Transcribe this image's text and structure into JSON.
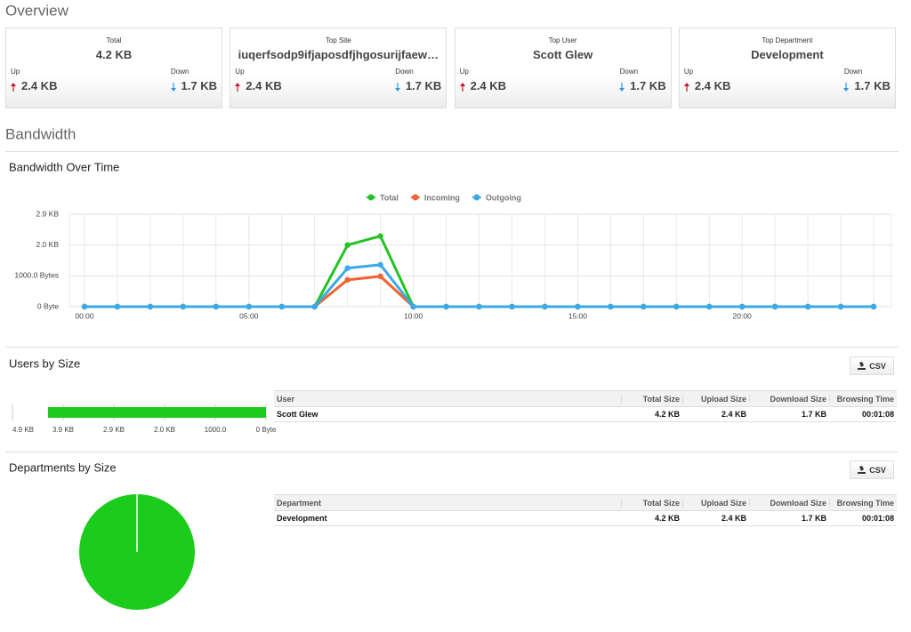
{
  "overview": {
    "title": "Overview",
    "cards": [
      {
        "label": "Total",
        "value": "4.2 KB",
        "up_label": "Up",
        "up_value": "2.4 KB",
        "down_label": "Down",
        "down_value": "1.7 KB"
      },
      {
        "label": "Top Site",
        "value": "iuqerfsodp9ifjaposdfjhgosurijfaew…",
        "up_label": "Up",
        "up_value": "2.4 KB",
        "down_label": "Down",
        "down_value": "1.7 KB"
      },
      {
        "label": "Top User",
        "value": "Scott Glew",
        "up_label": "Up",
        "up_value": "2.4 KB",
        "down_label": "Down",
        "down_value": "1.7 KB"
      },
      {
        "label": "Top Department",
        "value": "Development",
        "up_label": "Up",
        "up_value": "2.4 KB",
        "down_label": "Down",
        "down_value": "1.7 KB"
      }
    ]
  },
  "bandwidth": {
    "title": "Bandwidth"
  },
  "chart_data": [
    {
      "type": "line",
      "title": "Bandwidth Over Time",
      "categories": [
        "00:00",
        null,
        null,
        null,
        null,
        "05:00",
        null,
        null,
        null,
        null,
        "10:00",
        null,
        null,
        null,
        null,
        "15:00",
        null,
        null,
        null,
        null,
        "20:00",
        null,
        null,
        null,
        null
      ],
      "series": [
        {
          "name": "Total",
          "color": "#22c322",
          "values": [
            0,
            0,
            0,
            0,
            0,
            0,
            0,
            0,
            2000,
            2290,
            0,
            0,
            0,
            0,
            0,
            0,
            0,
            0,
            0,
            0,
            0,
            0,
            0,
            0,
            0
          ]
        },
        {
          "name": "Incoming",
          "color": "#ef6430",
          "values": [
            0,
            0,
            0,
            0,
            0,
            0,
            0,
            0,
            870,
            985,
            0,
            0,
            0,
            0,
            0,
            0,
            0,
            0,
            0,
            0,
            0,
            0,
            0,
            0,
            0
          ]
        },
        {
          "name": "Outgoing",
          "color": "#3aa9e6",
          "values": [
            0,
            0,
            0,
            0,
            0,
            0,
            0,
            0,
            1250,
            1360,
            0,
            0,
            0,
            0,
            0,
            0,
            0,
            0,
            0,
            0,
            0,
            0,
            0,
            0,
            0
          ]
        }
      ],
      "ylim": [
        0,
        3000
      ],
      "yticks": [
        {
          "value": 0,
          "label": "0 Byte"
        },
        {
          "value": 1000,
          "label": "1000.0 Bytes"
        },
        {
          "value": 2000,
          "label": "2.0 KB"
        },
        {
          "value": 3000,
          "label": "2.9 KB"
        }
      ],
      "grid": true,
      "legend": "top"
    },
    {
      "type": "bar",
      "orientation": "horizontal",
      "title": "Users by Size",
      "values": [
        4300
      ],
      "color": "#1ccc1c",
      "xlim": [
        5000,
        0
      ],
      "xticks": [
        {
          "value": 5000,
          "label": "4.9 KB"
        },
        {
          "value": 4000,
          "label": "3.9 KB"
        },
        {
          "value": 3000,
          "label": "2.9 KB"
        },
        {
          "value": 2000,
          "label": "2.0 KB"
        },
        {
          "value": 1000,
          "label": "1000.0"
        },
        {
          "value": 0,
          "label": "0 Byte"
        }
      ]
    },
    {
      "type": "pie",
      "title": "Departments by Size",
      "values": [
        4300
      ],
      "colors": [
        "#1ccc1c"
      ]
    }
  ],
  "users": {
    "csv": "CSV",
    "table": {
      "header": [
        "User",
        "Total Size",
        "Upload Size",
        "Download Size",
        "Browsing Time"
      ],
      "rows": [
        [
          "Scott Glew",
          "4.2 KB",
          "2.4 KB",
          "1.7 KB",
          "00:01:08"
        ]
      ]
    }
  },
  "departments": {
    "csv": "CSV",
    "table": {
      "header": [
        "Department",
        "Total Size",
        "Upload Size",
        "Download Size",
        "Browsing Time"
      ],
      "rows": [
        [
          "Development",
          "4.2 KB",
          "2.4 KB",
          "1.7 KB",
          "00:01:08"
        ]
      ]
    }
  }
}
